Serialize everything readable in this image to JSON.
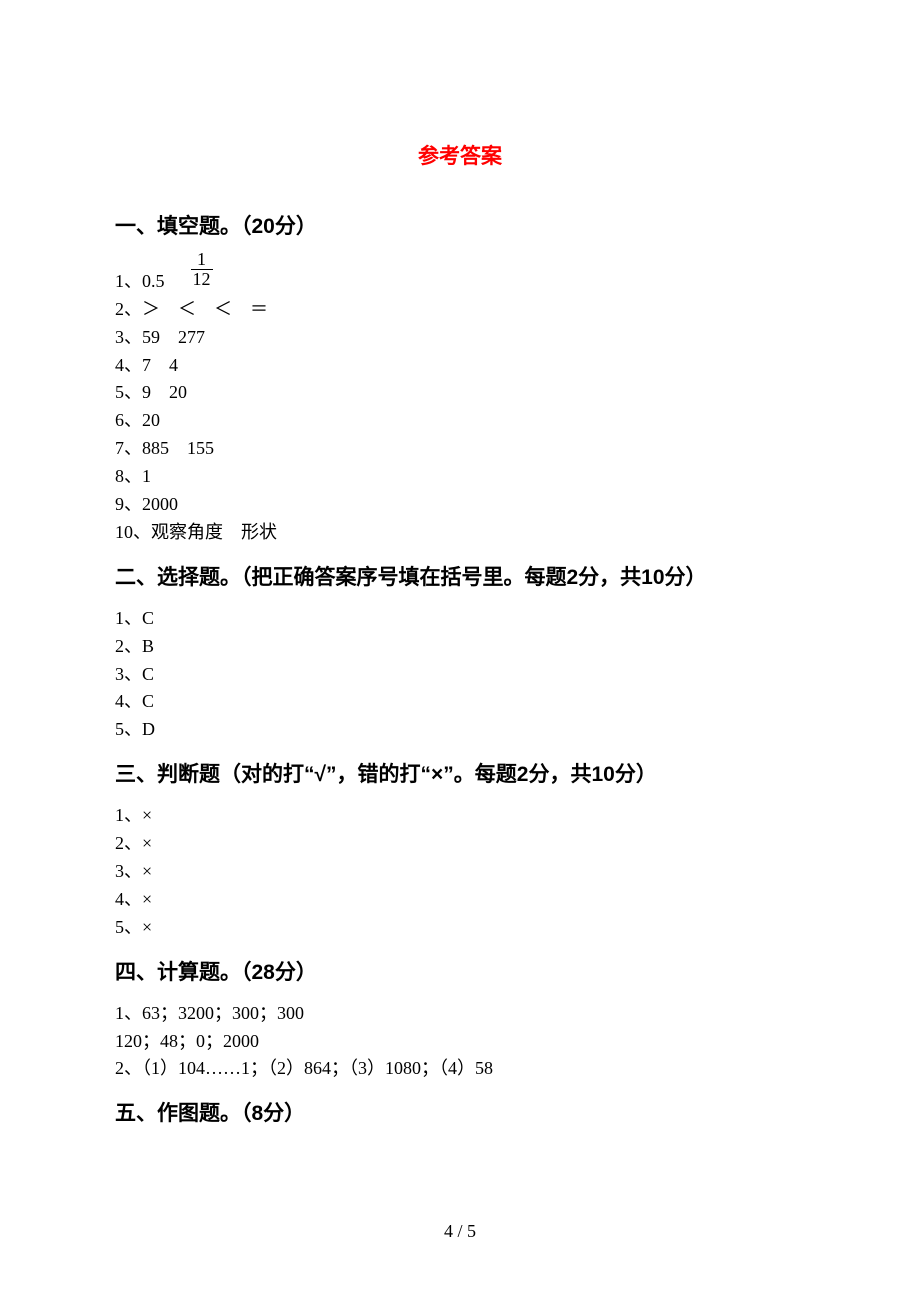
{
  "title": "参考答案",
  "colors": {
    "title": "#ff0000",
    "text": "#000000",
    "background": "#ffffff"
  },
  "typography": {
    "body_font": "SimSun",
    "heading_font": "SimHei",
    "body_fontsize_pt": 13,
    "heading_fontsize_pt": 16,
    "title_fontsize_pt": 16
  },
  "sections": {
    "s1": {
      "heading": "一、填空题。（20分）",
      "q1": {
        "label": "1、0.5",
        "frac_num": "1",
        "frac_den": "12"
      },
      "a2": "2、＞    ＜    ＜    ＝",
      "a3": "3、59    277",
      "a4": "4、7    4",
      "a5": "5、9    20",
      "a6": "6、20",
      "a7": "7、885    155",
      "a8": "8、1",
      "a9": "9、2000",
      "a10": "10、观察角度    形状"
    },
    "s2": {
      "heading": "二、选择题。（把正确答案序号填在括号里。每题2分，共10分）",
      "a1": "1、C",
      "a2": "2、B",
      "a3": "3、C",
      "a4": "4、C",
      "a5": "5、D"
    },
    "s3": {
      "heading": "三、判断题（对的打“√”，错的打“×”。每题2分，共10分）",
      "a1": "1、×",
      "a2": "2、×",
      "a3": "3、×",
      "a4": "4、×",
      "a5": "5、×"
    },
    "s4": {
      "heading": "四、计算题。（28分）",
      "a1": "1、63；3200；300；300",
      "a2": "120；48；0；2000",
      "a3": "2、（1）104……1；（2）864；（3）1080；（4）58"
    },
    "s5": {
      "heading": "五、作图题。（8分）"
    }
  },
  "footer": "4 / 5"
}
